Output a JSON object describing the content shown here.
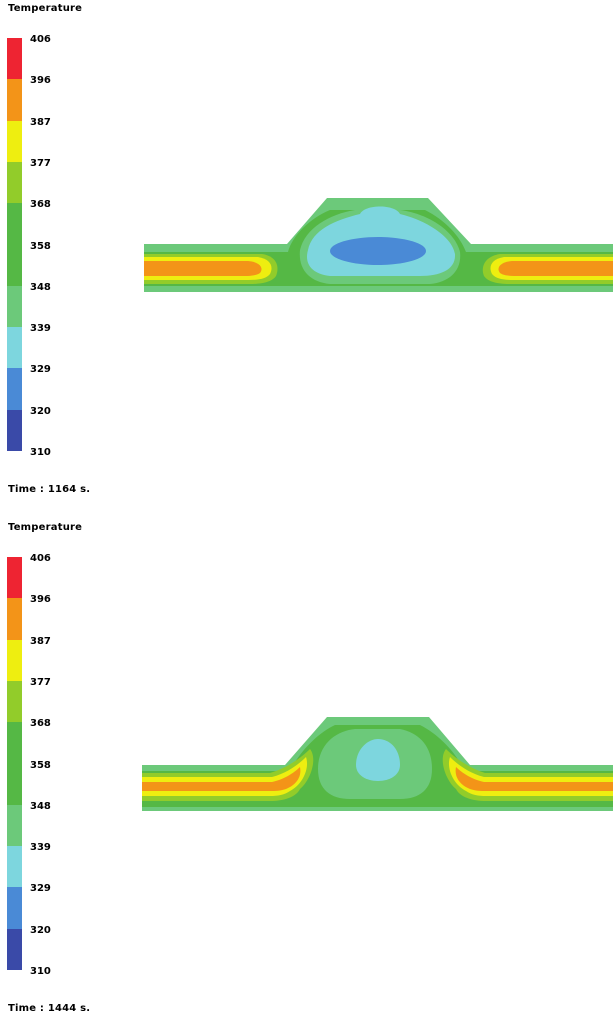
{
  "colors": {
    "palette": [
      "#3a4aa8",
      "#4a8ad6",
      "#7dd6de",
      "#6cc97a",
      "#55b845",
      "#55b845",
      "#92cc2a",
      "#eeee10",
      "#f39418",
      "#ee2432"
    ]
  },
  "chart_data": [
    {
      "type": "heatmap",
      "title": "Temperature",
      "legend_ticks": [
        "310",
        "320",
        "329",
        "339",
        "348",
        "358",
        "368",
        "377",
        "387",
        "396",
        "406"
      ],
      "legend_range": [
        310,
        406
      ],
      "legend_placement": "left",
      "time_label": "Time : 1164 s.",
      "time_s": 1164,
      "field_description": "Contour map of a trapezoid bump on a horizontal strip; hot cores in the strip, cool core under the bump"
    },
    {
      "type": "heatmap",
      "title": "Temperature",
      "legend_ticks": [
        "310",
        "320",
        "329",
        "339",
        "348",
        "358",
        "368",
        "377",
        "387",
        "396",
        "406"
      ],
      "legend_range": [
        310,
        406
      ],
      "legend_placement": "left",
      "time_label": "Time : 1444 s.",
      "time_s": 1444,
      "field_description": "Contour map at later time; cool core shrunk, hot bands extend toward bump"
    }
  ]
}
